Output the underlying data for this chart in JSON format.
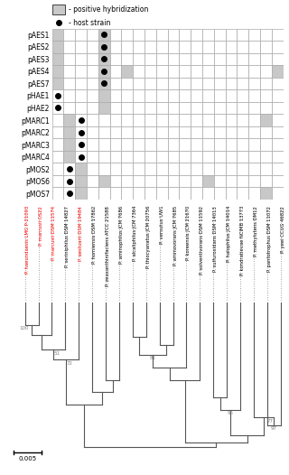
{
  "plasmids": [
    "pAES1",
    "pAES2",
    "pAES3",
    "pAES4",
    "pAES7",
    "pHAE1",
    "pHAE2",
    "pMARC1",
    "pMARC2",
    "pMARC3",
    "pMARC4",
    "pMOS2",
    "pMOS6",
    "pMOS7"
  ],
  "species": [
    "P. haeundaesis LMG P-21093",
    "P. marcusii OS22",
    "P. marcusii DSM 11574",
    "P. seriniphilus DSM 14827",
    "P. aestuarii DSM 19484",
    "P. homiensis DSM 17862",
    "P. zeaxanthinifaciens ATCC 21588",
    "P. aminophilus JCM 7686",
    "P. alcaliphilus JCM 7364",
    "P. thiocyanatus JCM 20756",
    "P. versutus UW1",
    "P. aminovorans JCM 7685",
    "P. koreensis JCM 21670",
    "P. solventivorans DSM 11592",
    "P. sulfuroxidans DSM 14013",
    "P. halophilus JCM 14014",
    "P. kondratievae NCIMB 13773",
    "P. methylutens DM12",
    "P. pantotrophus DSM 11072",
    "P. yeei CCUG 46822"
  ],
  "species_colors": [
    "red",
    "red",
    "red",
    "black",
    "red",
    "black",
    "black",
    "black",
    "black",
    "black",
    "black",
    "black",
    "black",
    "black",
    "black",
    "black",
    "black",
    "black",
    "black",
    "black"
  ],
  "grid_shaded": [
    [
      1,
      0,
      0,
      0,
      1,
      0,
      0,
      0,
      0,
      0,
      0,
      0,
      0,
      0,
      0,
      0,
      0,
      0,
      0,
      0
    ],
    [
      1,
      0,
      0,
      0,
      1,
      0,
      0,
      0,
      0,
      0,
      0,
      0,
      0,
      0,
      0,
      0,
      0,
      0,
      0,
      0
    ],
    [
      1,
      0,
      0,
      0,
      1,
      0,
      0,
      0,
      0,
      0,
      0,
      0,
      0,
      0,
      0,
      0,
      0,
      0,
      0,
      0
    ],
    [
      1,
      0,
      0,
      0,
      1,
      0,
      1,
      0,
      0,
      0,
      0,
      0,
      0,
      0,
      0,
      0,
      0,
      0,
      0,
      1
    ],
    [
      1,
      0,
      0,
      0,
      1,
      0,
      0,
      0,
      0,
      0,
      0,
      0,
      0,
      0,
      0,
      0,
      0,
      0,
      0,
      0
    ],
    [
      0,
      0,
      0,
      0,
      1,
      0,
      0,
      0,
      0,
      0,
      0,
      0,
      0,
      0,
      0,
      0,
      0,
      0,
      0,
      0
    ],
    [
      0,
      0,
      0,
      0,
      1,
      0,
      0,
      0,
      0,
      0,
      0,
      0,
      0,
      0,
      0,
      0,
      0,
      0,
      0,
      0
    ],
    [
      0,
      1,
      0,
      0,
      0,
      0,
      0,
      0,
      0,
      0,
      0,
      0,
      0,
      0,
      0,
      0,
      0,
      0,
      1,
      0
    ],
    [
      0,
      1,
      0,
      0,
      0,
      0,
      0,
      0,
      0,
      0,
      0,
      0,
      0,
      0,
      0,
      0,
      0,
      0,
      0,
      0
    ],
    [
      0,
      1,
      0,
      0,
      0,
      0,
      0,
      0,
      0,
      0,
      0,
      0,
      0,
      0,
      0,
      0,
      0,
      0,
      0,
      0
    ],
    [
      0,
      1,
      0,
      0,
      0,
      0,
      0,
      0,
      0,
      0,
      0,
      0,
      0,
      0,
      0,
      0,
      0,
      0,
      0,
      0
    ],
    [
      0,
      0,
      1,
      0,
      0,
      0,
      0,
      0,
      0,
      0,
      0,
      0,
      0,
      0,
      0,
      0,
      0,
      0,
      0,
      0
    ],
    [
      0,
      0,
      1,
      0,
      1,
      0,
      0,
      0,
      0,
      0,
      0,
      0,
      0,
      1,
      0,
      0,
      0,
      0,
      0,
      0
    ],
    [
      0,
      0,
      1,
      0,
      0,
      0,
      0,
      0,
      0,
      0,
      0,
      0,
      0,
      0,
      0,
      0,
      0,
      0,
      1,
      0
    ]
  ],
  "host_dots": [
    [
      0,
      0,
      0,
      0,
      1,
      0,
      0,
      0,
      0,
      0,
      0,
      0,
      0,
      0,
      0,
      0,
      0,
      0,
      0,
      0
    ],
    [
      0,
      0,
      0,
      0,
      1,
      0,
      0,
      0,
      0,
      0,
      0,
      0,
      0,
      0,
      0,
      0,
      0,
      0,
      0,
      0
    ],
    [
      0,
      0,
      0,
      0,
      1,
      0,
      0,
      0,
      0,
      0,
      0,
      0,
      0,
      0,
      0,
      0,
      0,
      0,
      0,
      0
    ],
    [
      0,
      0,
      0,
      0,
      1,
      0,
      0,
      0,
      0,
      0,
      0,
      0,
      0,
      0,
      0,
      0,
      0,
      0,
      0,
      0
    ],
    [
      0,
      0,
      0,
      0,
      1,
      0,
      0,
      0,
      0,
      0,
      0,
      0,
      0,
      0,
      0,
      0,
      0,
      0,
      0,
      0
    ],
    [
      1,
      0,
      0,
      0,
      0,
      0,
      0,
      0,
      0,
      0,
      0,
      0,
      0,
      0,
      0,
      0,
      0,
      0,
      0,
      0
    ],
    [
      1,
      0,
      0,
      0,
      0,
      0,
      0,
      0,
      0,
      0,
      0,
      0,
      0,
      0,
      0,
      0,
      0,
      0,
      0,
      0
    ],
    [
      0,
      0,
      1,
      0,
      0,
      0,
      0,
      0,
      0,
      0,
      0,
      0,
      0,
      0,
      0,
      0,
      0,
      0,
      0,
      0
    ],
    [
      0,
      0,
      1,
      0,
      0,
      0,
      0,
      0,
      0,
      0,
      0,
      0,
      0,
      0,
      0,
      0,
      0,
      0,
      0,
      0
    ],
    [
      0,
      0,
      1,
      0,
      0,
      0,
      0,
      0,
      0,
      0,
      0,
      0,
      0,
      0,
      0,
      0,
      0,
      0,
      0,
      0
    ],
    [
      0,
      0,
      1,
      0,
      0,
      0,
      0,
      0,
      0,
      0,
      0,
      0,
      0,
      0,
      0,
      0,
      0,
      0,
      0,
      0
    ],
    [
      0,
      1,
      0,
      0,
      0,
      0,
      0,
      0,
      0,
      0,
      0,
      0,
      0,
      0,
      0,
      0,
      0,
      0,
      0,
      0
    ],
    [
      0,
      1,
      0,
      0,
      0,
      0,
      0,
      0,
      0,
      0,
      0,
      0,
      0,
      0,
      0,
      0,
      0,
      0,
      0,
      0
    ],
    [
      0,
      1,
      0,
      0,
      0,
      0,
      0,
      0,
      0,
      0,
      0,
      0,
      0,
      0,
      0,
      0,
      0,
      0,
      0,
      0
    ]
  ],
  "tree_color": "#555555",
  "grid_color": "#aaaaaa",
  "shade_color": "#c8c8c8",
  "background_color": "#ffffff",
  "legend_shade_label": "- positive hybridization",
  "legend_dot_label": "- host strain"
}
